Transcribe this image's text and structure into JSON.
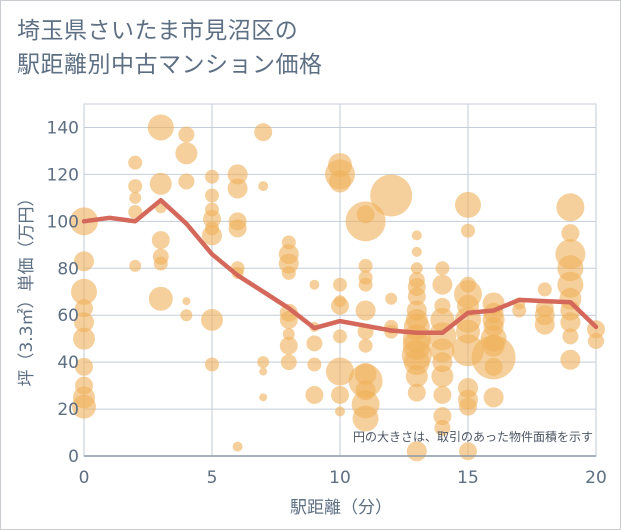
{
  "title_line1": "埼玉県さいたま市見沼区の",
  "title_line2": "駅距離別中古マンション価格",
  "chart_data": {
    "type": "scatter",
    "xlabel": "駅距離（分）",
    "ylabel": "坪（3.3㎡）単価（万円）",
    "xlim": [
      0,
      20
    ],
    "ylim": [
      0,
      150
    ],
    "xticks": [
      0,
      5,
      10,
      15,
      20
    ],
    "yticks": [
      0,
      20,
      40,
      60,
      80,
      100,
      120,
      140
    ],
    "grid": true,
    "annotation": "円の大きさは、取引のあった物件面積を示す",
    "colors": {
      "bubble": "#f0b15a",
      "line": "#d4685a",
      "grid": "#c5ced8"
    },
    "bubbles": [
      {
        "x": 0,
        "y": 100,
        "s": 14
      },
      {
        "x": 0,
        "y": 83,
        "s": 10
      },
      {
        "x": 0,
        "y": 70,
        "s": 13
      },
      {
        "x": 0,
        "y": 57,
        "s": 10
      },
      {
        "x": 0,
        "y": 50,
        "s": 11
      },
      {
        "x": 0,
        "y": 30,
        "s": 9
      },
      {
        "x": 0,
        "y": 25,
        "s": 11
      },
      {
        "x": 0,
        "y": 21,
        "s": 12
      },
      {
        "x": 0,
        "y": 38,
        "s": 9
      },
      {
        "x": 0,
        "y": 63,
        "s": 9
      },
      {
        "x": 2,
        "y": 125,
        "s": 7
      },
      {
        "x": 2,
        "y": 115,
        "s": 7
      },
      {
        "x": 2,
        "y": 110,
        "s": 6
      },
      {
        "x": 2,
        "y": 104,
        "s": 7
      },
      {
        "x": 2,
        "y": 81,
        "s": 6
      },
      {
        "x": 3,
        "y": 140,
        "s": 13
      },
      {
        "x": 3,
        "y": 116,
        "s": 11
      },
      {
        "x": 3,
        "y": 92,
        "s": 9
      },
      {
        "x": 3,
        "y": 85,
        "s": 8
      },
      {
        "x": 3,
        "y": 82,
        "s": 7
      },
      {
        "x": 3,
        "y": 67,
        "s": 12
      },
      {
        "x": 3,
        "y": 106,
        "s": 6
      },
      {
        "x": 4,
        "y": 137,
        "s": 8
      },
      {
        "x": 4,
        "y": 129,
        "s": 11
      },
      {
        "x": 4,
        "y": 117,
        "s": 8
      },
      {
        "x": 4,
        "y": 66,
        "s": 4
      },
      {
        "x": 4,
        "y": 60,
        "s": 6
      },
      {
        "x": 5,
        "y": 119,
        "s": 7
      },
      {
        "x": 5,
        "y": 111,
        "s": 7
      },
      {
        "x": 5,
        "y": 105,
        "s": 7
      },
      {
        "x": 5,
        "y": 101,
        "s": 9
      },
      {
        "x": 5,
        "y": 97,
        "s": 7
      },
      {
        "x": 5,
        "y": 94,
        "s": 10
      },
      {
        "x": 5,
        "y": 58,
        "s": 11
      },
      {
        "x": 5,
        "y": 39,
        "s": 7
      },
      {
        "x": 6,
        "y": 120,
        "s": 10
      },
      {
        "x": 6,
        "y": 114,
        "s": 10
      },
      {
        "x": 6,
        "y": 100,
        "s": 9
      },
      {
        "x": 6,
        "y": 97,
        "s": 9
      },
      {
        "x": 6,
        "y": 80,
        "s": 7
      },
      {
        "x": 6,
        "y": 78,
        "s": 6
      },
      {
        "x": 6,
        "y": 4,
        "s": 5
      },
      {
        "x": 7,
        "y": 138,
        "s": 9
      },
      {
        "x": 7,
        "y": 115,
        "s": 5
      },
      {
        "x": 7,
        "y": 40,
        "s": 6
      },
      {
        "x": 7,
        "y": 36,
        "s": 4
      },
      {
        "x": 7,
        "y": 25,
        "s": 4
      },
      {
        "x": 8,
        "y": 91,
        "s": 7
      },
      {
        "x": 8,
        "y": 86,
        "s": 10
      },
      {
        "x": 8,
        "y": 82,
        "s": 10
      },
      {
        "x": 8,
        "y": 78,
        "s": 7
      },
      {
        "x": 8,
        "y": 61,
        "s": 9
      },
      {
        "x": 8,
        "y": 58,
        "s": 9
      },
      {
        "x": 8,
        "y": 52,
        "s": 6
      },
      {
        "x": 8,
        "y": 47,
        "s": 9
      },
      {
        "x": 8,
        "y": 40,
        "s": 8
      },
      {
        "x": 9,
        "y": 73,
        "s": 5
      },
      {
        "x": 9,
        "y": 55,
        "s": 5
      },
      {
        "x": 9,
        "y": 48,
        "s": 8
      },
      {
        "x": 9,
        "y": 39,
        "s": 7
      },
      {
        "x": 9,
        "y": 26,
        "s": 9
      },
      {
        "x": 10,
        "y": 124,
        "s": 12
      },
      {
        "x": 10,
        "y": 120,
        "s": 15
      },
      {
        "x": 10,
        "y": 117,
        "s": 11
      },
      {
        "x": 10,
        "y": 73,
        "s": 7
      },
      {
        "x": 10,
        "y": 66,
        "s": 6
      },
      {
        "x": 10,
        "y": 64,
        "s": 9
      },
      {
        "x": 10,
        "y": 51,
        "s": 7
      },
      {
        "x": 10,
        "y": 36,
        "s": 14
      },
      {
        "x": 10,
        "y": 26,
        "s": 9
      },
      {
        "x": 10,
        "y": 19,
        "s": 5
      },
      {
        "x": 11,
        "y": 103,
        "s": 9
      },
      {
        "x": 11,
        "y": 100,
        "s": 20
      },
      {
        "x": 11,
        "y": 81,
        "s": 7
      },
      {
        "x": 11,
        "y": 76,
        "s": 7
      },
      {
        "x": 11,
        "y": 73,
        "s": 7
      },
      {
        "x": 11,
        "y": 62,
        "s": 10
      },
      {
        "x": 11,
        "y": 53,
        "s": 8
      },
      {
        "x": 11,
        "y": 47,
        "s": 7
      },
      {
        "x": 11,
        "y": 35,
        "s": 11
      },
      {
        "x": 11,
        "y": 32,
        "s": 17
      },
      {
        "x": 11,
        "y": 28,
        "s": 10
      },
      {
        "x": 11,
        "y": 22,
        "s": 14
      },
      {
        "x": 11,
        "y": 16,
        "s": 13
      },
      {
        "x": 12,
        "y": 111,
        "s": 21
      },
      {
        "x": 12,
        "y": 67,
        "s": 6
      },
      {
        "x": 12,
        "y": 55,
        "s": 7
      },
      {
        "x": 12,
        "y": 53,
        "s": 7
      },
      {
        "x": 13,
        "y": 94,
        "s": 5
      },
      {
        "x": 13,
        "y": 87,
        "s": 5
      },
      {
        "x": 13,
        "y": 80,
        "s": 6
      },
      {
        "x": 13,
        "y": 75,
        "s": 8
      },
      {
        "x": 13,
        "y": 72,
        "s": 9
      },
      {
        "x": 13,
        "y": 68,
        "s": 9
      },
      {
        "x": 13,
        "y": 62,
        "s": 10
      },
      {
        "x": 13,
        "y": 58,
        "s": 11
      },
      {
        "x": 13,
        "y": 55,
        "s": 13
      },
      {
        "x": 13,
        "y": 50,
        "s": 14
      },
      {
        "x": 13,
        "y": 47,
        "s": 14
      },
      {
        "x": 13,
        "y": 43,
        "s": 15
      },
      {
        "x": 13,
        "y": 40,
        "s": 13
      },
      {
        "x": 13,
        "y": 34,
        "s": 11
      },
      {
        "x": 13,
        "y": 27,
        "s": 9
      },
      {
        "x": 13,
        "y": 2,
        "s": 10
      },
      {
        "x": 14,
        "y": 80,
        "s": 7
      },
      {
        "x": 14,
        "y": 73,
        "s": 10
      },
      {
        "x": 14,
        "y": 64,
        "s": 8
      },
      {
        "x": 14,
        "y": 58,
        "s": 12
      },
      {
        "x": 14,
        "y": 51,
        "s": 14
      },
      {
        "x": 14,
        "y": 45,
        "s": 12
      },
      {
        "x": 14,
        "y": 40,
        "s": 10
      },
      {
        "x": 14,
        "y": 34,
        "s": 11
      },
      {
        "x": 14,
        "y": 26,
        "s": 9
      },
      {
        "x": 14,
        "y": 17,
        "s": 9
      },
      {
        "x": 14,
        "y": 12,
        "s": 8
      },
      {
        "x": 15,
        "y": 107,
        "s": 13
      },
      {
        "x": 15,
        "y": 96,
        "s": 7
      },
      {
        "x": 15,
        "y": 73,
        "s": 8
      },
      {
        "x": 15,
        "y": 69,
        "s": 14
      },
      {
        "x": 15,
        "y": 64,
        "s": 11
      },
      {
        "x": 15,
        "y": 58,
        "s": 13
      },
      {
        "x": 15,
        "y": 53,
        "s": 12
      },
      {
        "x": 15,
        "y": 45,
        "s": 16
      },
      {
        "x": 15,
        "y": 29,
        "s": 10
      },
      {
        "x": 15,
        "y": 24,
        "s": 10
      },
      {
        "x": 15,
        "y": 21,
        "s": 9
      },
      {
        "x": 15,
        "y": 2,
        "s": 9
      },
      {
        "x": 16,
        "y": 65,
        "s": 11
      },
      {
        "x": 16,
        "y": 61,
        "s": 10
      },
      {
        "x": 16,
        "y": 58,
        "s": 11
      },
      {
        "x": 16,
        "y": 55,
        "s": 10
      },
      {
        "x": 16,
        "y": 50,
        "s": 13
      },
      {
        "x": 16,
        "y": 47,
        "s": 11
      },
      {
        "x": 16,
        "y": 42,
        "s": 22
      },
      {
        "x": 16,
        "y": 38,
        "s": 9
      },
      {
        "x": 16,
        "y": 25,
        "s": 10
      },
      {
        "x": 17,
        "y": 65,
        "s": 6
      },
      {
        "x": 17,
        "y": 62,
        "s": 7
      },
      {
        "x": 18,
        "y": 71,
        "s": 7
      },
      {
        "x": 18,
        "y": 63,
        "s": 9
      },
      {
        "x": 18,
        "y": 60,
        "s": 10
      },
      {
        "x": 18,
        "y": 56,
        "s": 10
      },
      {
        "x": 19,
        "y": 106,
        "s": 14
      },
      {
        "x": 19,
        "y": 95,
        "s": 9
      },
      {
        "x": 19,
        "y": 86,
        "s": 15
      },
      {
        "x": 19,
        "y": 80,
        "s": 13
      },
      {
        "x": 19,
        "y": 73,
        "s": 13
      },
      {
        "x": 19,
        "y": 67,
        "s": 11
      },
      {
        "x": 19,
        "y": 62,
        "s": 10
      },
      {
        "x": 19,
        "y": 57,
        "s": 10
      },
      {
        "x": 19,
        "y": 51,
        "s": 8
      },
      {
        "x": 19,
        "y": 41,
        "s": 10
      },
      {
        "x": 20,
        "y": 54,
        "s": 9
      },
      {
        "x": 20,
        "y": 49,
        "s": 8
      }
    ],
    "series": [
      {
        "x": [
          0,
          1,
          2,
          3,
          4,
          5,
          6,
          7,
          8,
          9,
          10,
          11,
          12,
          13,
          14,
          15,
          16,
          17,
          18,
          19,
          20
        ],
        "values": [
          100,
          101.5,
          100,
          109,
          99,
          86,
          77,
          70,
          63,
          54.5,
          57.5,
          55.5,
          53.5,
          52.5,
          52.5,
          61,
          62,
          66.5,
          66,
          65.5,
          55
        ]
      }
    ]
  }
}
